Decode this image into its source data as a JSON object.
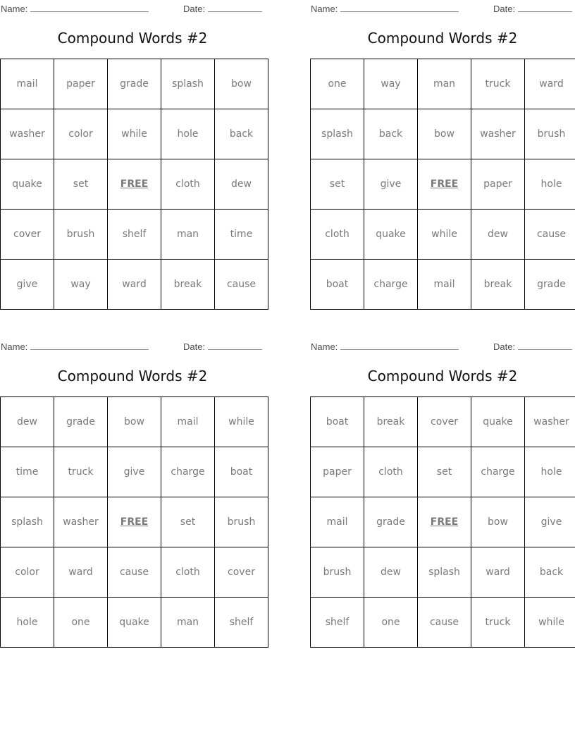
{
  "header": {
    "name_label": "Name:",
    "date_label": "Date:"
  },
  "card_title": "Compound Words #2",
  "free_word": "FREE",
  "colors": {
    "word_text": "#7a7a7a",
    "grid_border": "#000000",
    "label_text": "#4d4d4d",
    "blank_line": "#8f8f8f",
    "title_text": "#111111",
    "background": "#ffffff"
  },
  "cards": [
    {
      "rows": [
        [
          "mail",
          "paper",
          "grade",
          "splash",
          "bow"
        ],
        [
          "washer",
          "color",
          "while",
          "hole",
          "back"
        ],
        [
          "quake",
          "set",
          "FREE",
          "cloth",
          "dew"
        ],
        [
          "cover",
          "brush",
          "shelf",
          "man",
          "time"
        ],
        [
          "give",
          "way",
          "ward",
          "break",
          "cause"
        ]
      ]
    },
    {
      "rows": [
        [
          "one",
          "way",
          "man",
          "truck",
          "ward"
        ],
        [
          "splash",
          "back",
          "bow",
          "washer",
          "brush"
        ],
        [
          "set",
          "give",
          "FREE",
          "paper",
          "hole"
        ],
        [
          "cloth",
          "quake",
          "while",
          "dew",
          "cause"
        ],
        [
          "boat",
          "charge",
          "mail",
          "break",
          "grade"
        ]
      ]
    },
    {
      "rows": [
        [
          "dew",
          "grade",
          "bow",
          "mail",
          "while"
        ],
        [
          "time",
          "truck",
          "give",
          "charge",
          "boat"
        ],
        [
          "splash",
          "washer",
          "FREE",
          "set",
          "brush"
        ],
        [
          "color",
          "ward",
          "cause",
          "cloth",
          "cover"
        ],
        [
          "hole",
          "one",
          "quake",
          "man",
          "shelf"
        ]
      ]
    },
    {
      "rows": [
        [
          "boat",
          "break",
          "cover",
          "quake",
          "washer"
        ],
        [
          "paper",
          "cloth",
          "set",
          "charge",
          "hole"
        ],
        [
          "mail",
          "grade",
          "FREE",
          "bow",
          "give"
        ],
        [
          "brush",
          "dew",
          "splash",
          "ward",
          "back"
        ],
        [
          "shelf",
          "one",
          "cause",
          "truck",
          "while"
        ]
      ]
    }
  ]
}
